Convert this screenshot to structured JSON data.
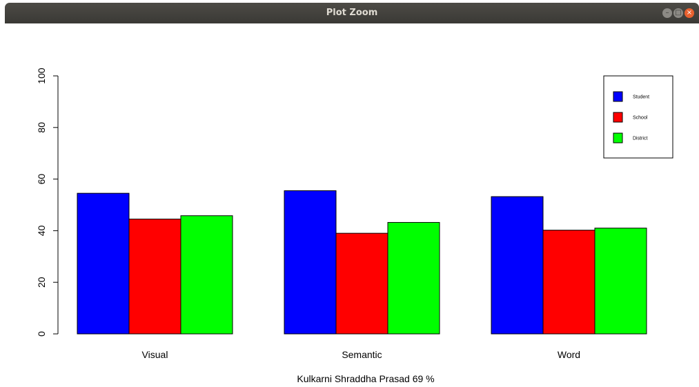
{
  "window": {
    "title": "Plot Zoom",
    "buttons": {
      "minimize": "–",
      "maximize": "□",
      "close": "×"
    }
  },
  "chart_data": {
    "type": "bar",
    "categories": [
      "Visual",
      "Semantic",
      "Word"
    ],
    "series": [
      {
        "name": "Student",
        "color": "#0000ff",
        "values": [
          54.5,
          55.5,
          53.2
        ]
      },
      {
        "name": "School",
        "color": "#ff0000",
        "values": [
          44.5,
          39.0,
          40.2
        ]
      },
      {
        "name": "District",
        "color": "#00ff00",
        "values": [
          45.8,
          43.2,
          41.0
        ]
      }
    ],
    "ylim": [
      0,
      100
    ],
    "yticks": [
      "0",
      "20",
      "40",
      "60",
      "80",
      "100"
    ],
    "xlabel": "Kulkarni Shraddha Prasad 69 %",
    "ylabel": "",
    "grid": false,
    "legend_position": "top-right"
  }
}
